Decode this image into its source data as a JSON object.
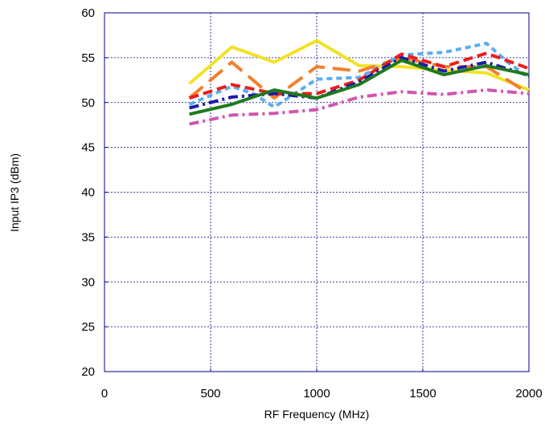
{
  "chart_data": {
    "type": "line",
    "title": "",
    "xlabel": "RF Frequency (MHz)",
    "ylabel": "Input IP3 (dBm)",
    "xlim": [
      0,
      2000
    ],
    "ylim": [
      20,
      60
    ],
    "xticks": [
      0,
      500,
      1000,
      1500,
      2000
    ],
    "yticks": [
      20,
      25,
      30,
      35,
      40,
      45,
      50,
      55,
      60
    ],
    "xtick_labels": [
      "0",
      "500",
      "1000",
      "1500",
      "2000"
    ],
    "ytick_labels": [
      "20",
      "25",
      "30",
      "35",
      "40",
      "45",
      "50",
      "55",
      "60"
    ],
    "grid": true,
    "legend": "none",
    "series": [
      {
        "color": "#f2e227",
        "dash": "solid",
        "x": [
          400,
          600,
          800,
          1000,
          1200,
          1400,
          1600,
          1800,
          2000
        ],
        "y": [
          52.1,
          56.2,
          54.5,
          56.9,
          54.1,
          54.0,
          53.6,
          53.3,
          51.4
        ]
      },
      {
        "color": "#f47f2a",
        "dash": "long-dash",
        "x": [
          400,
          600,
          800,
          1000,
          1200,
          1400,
          1600,
          1800,
          2000
        ],
        "y": [
          50.5,
          54.5,
          50.5,
          54.0,
          53.5,
          55.0,
          54.0,
          54.0,
          51.0
        ]
      },
      {
        "color": "#5aaef0",
        "dash": "short-dash",
        "x": [
          400,
          600,
          700,
          800,
          1000,
          1200,
          1400,
          1600,
          1800,
          1900,
          2000
        ],
        "y": [
          49.8,
          51.8,
          51.0,
          49.5,
          52.6,
          52.8,
          55.3,
          55.6,
          56.6,
          54.5,
          52.8
        ]
      },
      {
        "color": "#ee1c1c",
        "dash": "dash",
        "x": [
          400,
          600,
          800,
          1000,
          1200,
          1400,
          1600,
          1800,
          2000
        ],
        "y": [
          50.5,
          52.0,
          51.0,
          51.0,
          52.5,
          55.4,
          54.0,
          55.5,
          53.8
        ]
      },
      {
        "color": "#1c1ca8",
        "dash": "dash-dot",
        "x": [
          400,
          600,
          800,
          1000,
          1200,
          1400,
          1600,
          1800,
          2000
        ],
        "y": [
          49.4,
          50.6,
          51.0,
          50.5,
          52.3,
          55.0,
          53.5,
          54.5,
          53.0
        ]
      },
      {
        "color": "#1e7a1e",
        "dash": "solid",
        "x": [
          400,
          600,
          800,
          1000,
          1200,
          1400,
          1600,
          1800,
          2000
        ],
        "y": [
          48.7,
          49.8,
          51.4,
          50.5,
          52.0,
          54.7,
          53.1,
          54.1,
          53.1
        ]
      },
      {
        "color": "#d055b0",
        "dash": "dash-dot",
        "x": [
          400,
          600,
          800,
          1000,
          1200,
          1400,
          1600,
          1800,
          2000
        ],
        "y": [
          47.6,
          48.6,
          48.8,
          49.2,
          50.6,
          51.2,
          50.9,
          51.4,
          51.0
        ]
      }
    ]
  }
}
